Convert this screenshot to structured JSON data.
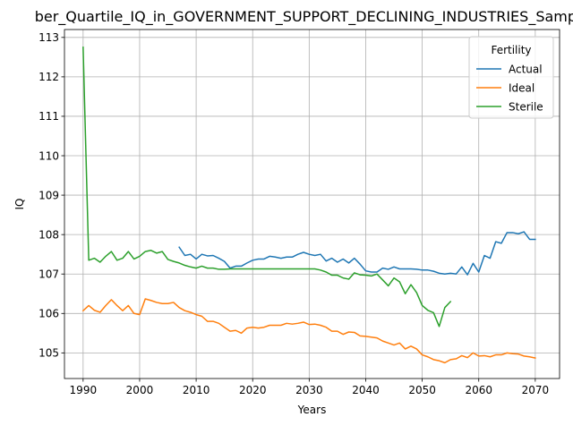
{
  "chart_data": {
    "type": "line",
    "title": "ber_Quartile_IQ_in_GOVERNMENT_SUPPORT_DECLINING_INDUSTRIES_Sample",
    "xlabel": "Years",
    "ylabel": "IQ",
    "xlim": [
      1986.7,
      2074.3
    ],
    "ylim": [
      104.35,
      113.2
    ],
    "xticks": [
      1990,
      2000,
      2010,
      2020,
      2030,
      2040,
      2050,
      2060,
      2070
    ],
    "yticks": [
      105,
      106,
      107,
      108,
      109,
      110,
      111,
      112,
      113
    ],
    "grid": true,
    "legend": {
      "title": "Fertility",
      "placement": "upper right"
    },
    "series": [
      {
        "name": "Actual",
        "color": "#1f77b4",
        "x": [
          2007,
          2008,
          2009,
          2010,
          2011,
          2012,
          2013,
          2014,
          2015,
          2016,
          2017,
          2018,
          2019,
          2020,
          2021,
          2022,
          2023,
          2024,
          2025,
          2026,
          2027,
          2028,
          2029,
          2030,
          2031,
          2032,
          2033,
          2034,
          2035,
          2036,
          2037,
          2038,
          2039,
          2040,
          2041,
          2042,
          2043,
          2044,
          2045,
          2046,
          2047,
          2048,
          2049,
          2050,
          2051,
          2052,
          2053,
          2054,
          2055,
          2056,
          2057,
          2058,
          2059,
          2060,
          2061,
          2062,
          2063,
          2064,
          2065,
          2066,
          2067,
          2068,
          2069,
          2070
        ],
        "values": [
          107.68,
          107.47,
          107.5,
          107.38,
          107.5,
          107.46,
          107.47,
          107.4,
          107.32,
          107.15,
          107.2,
          107.2,
          107.28,
          107.35,
          107.38,
          107.38,
          107.45,
          107.43,
          107.4,
          107.43,
          107.43,
          107.5,
          107.55,
          107.5,
          107.47,
          107.5,
          107.33,
          107.4,
          107.3,
          107.38,
          107.28,
          107.4,
          107.25,
          107.08,
          107.05,
          107.05,
          107.15,
          107.12,
          107.18,
          107.13,
          107.13,
          107.13,
          107.12,
          107.1,
          107.1,
          107.07,
          107.02,
          107,
          107.02,
          107,
          107.18,
          106.98,
          107.27,
          107.05,
          107.47,
          107.4,
          107.82,
          107.78,
          108.05,
          108.05,
          108.02,
          108.07,
          107.88,
          107.88
        ]
      },
      {
        "name": "Ideal",
        "color": "#ff7f0e",
        "x": [
          1990,
          1991,
          1992,
          1993,
          1994,
          1995,
          1996,
          1997,
          1998,
          1999,
          2000,
          2001,
          2002,
          2003,
          2004,
          2005,
          2006,
          2007,
          2008,
          2009,
          2010,
          2011,
          2012,
          2013,
          2014,
          2015,
          2016,
          2017,
          2018,
          2019,
          2020,
          2021,
          2022,
          2023,
          2024,
          2025,
          2026,
          2027,
          2028,
          2029,
          2030,
          2031,
          2032,
          2033,
          2034,
          2035,
          2036,
          2037,
          2038,
          2039,
          2040,
          2041,
          2042,
          2043,
          2044,
          2045,
          2046,
          2047,
          2048,
          2049,
          2050,
          2051,
          2052,
          2053,
          2054,
          2055,
          2056,
          2057,
          2058,
          2059,
          2060,
          2061,
          2062,
          2063,
          2064,
          2065,
          2066,
          2067,
          2068,
          2069,
          2070
        ],
        "values": [
          106.07,
          106.2,
          106.08,
          106.03,
          106.2,
          106.35,
          106.2,
          106.07,
          106.2,
          106,
          105.97,
          106.37,
          106.33,
          106.28,
          106.25,
          106.25,
          106.28,
          106.15,
          106.07,
          106.03,
          105.97,
          105.93,
          105.8,
          105.8,
          105.75,
          105.65,
          105.55,
          105.57,
          105.5,
          105.63,
          105.65,
          105.63,
          105.65,
          105.7,
          105.7,
          105.7,
          105.75,
          105.73,
          105.75,
          105.78,
          105.72,
          105.73,
          105.7,
          105.65,
          105.55,
          105.55,
          105.47,
          105.53,
          105.52,
          105.43,
          105.42,
          105.4,
          105.38,
          105.3,
          105.25,
          105.2,
          105.25,
          105.1,
          105.17,
          105.1,
          104.95,
          104.9,
          104.83,
          104.8,
          104.75,
          104.83,
          104.85,
          104.93,
          104.88,
          105,
          104.92,
          104.93,
          104.9,
          104.95,
          104.95,
          105,
          104.98,
          104.97,
          104.92,
          104.9,
          104.87
        ]
      },
      {
        "name": "Sterile",
        "color": "#2ca02c",
        "x": [
          1990,
          1991,
          1992,
          1993,
          1994,
          1995,
          1996,
          1997,
          1998,
          1999,
          2000,
          2001,
          2002,
          2003,
          2004,
          2005,
          2006,
          2007,
          2008,
          2009,
          2010,
          2011,
          2012,
          2013,
          2014,
          2015,
          2016,
          2017,
          2018,
          2019,
          2020,
          2021,
          2022,
          2023,
          2024,
          2025,
          2026,
          2027,
          2028,
          2029,
          2030,
          2031,
          2032,
          2033,
          2034,
          2035,
          2036,
          2037,
          2038,
          2039,
          2040,
          2041,
          2042,
          2043,
          2044,
          2045,
          2046,
          2047,
          2048,
          2049,
          2050,
          2051,
          2052,
          2053,
          2054,
          2055
        ],
        "values": [
          112.75,
          107.35,
          107.4,
          107.3,
          107.45,
          107.57,
          107.35,
          107.4,
          107.57,
          107.38,
          107.45,
          107.57,
          107.6,
          107.53,
          107.57,
          107.37,
          107.32,
          107.28,
          107.22,
          107.18,
          107.15,
          107.2,
          107.15,
          107.15,
          107.12,
          107.12,
          107.13,
          107.13,
          107.13,
          107.13,
          107.13,
          107.13,
          107.13,
          107.13,
          107.13,
          107.13,
          107.13,
          107.13,
          107.13,
          107.13,
          107.13,
          107.13,
          107.1,
          107.05,
          106.97,
          106.97,
          106.9,
          106.87,
          107.03,
          106.98,
          106.97,
          106.95,
          107,
          106.85,
          106.7,
          106.9,
          106.8,
          106.5,
          106.73,
          106.53,
          106.2,
          106.08,
          106.02,
          105.67,
          106.15,
          106.3
        ]
      }
    ]
  }
}
